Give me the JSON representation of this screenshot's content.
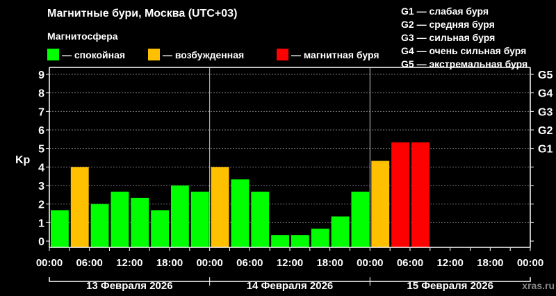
{
  "title": "Магнитные бури, Москва (UTC+03)",
  "subtitle": "Магнитосфера",
  "legend": [
    {
      "label": "— спокойная",
      "color": "#00ff00"
    },
    {
      "label": "— возбужденная",
      "color": "#ffc000"
    },
    {
      "label": "— магнитная буря",
      "color": "#ff0000"
    }
  ],
  "g_scale": [
    "G1 — слабая буря",
    "G2 — средняя буря",
    "G3 — сильная буря",
    "G4 — очень сильная буря",
    "G5 — экстремальная буря"
  ],
  "watermark": "xras.ru",
  "chart_data": {
    "type": "bar",
    "ylabel": "Kp",
    "ylim": [
      0,
      9
    ],
    "yticks": [
      0,
      1,
      2,
      3,
      4,
      5,
      6,
      7,
      8,
      9
    ],
    "right_ticks": [
      {
        "value": 5,
        "label": "G1"
      },
      {
        "value": 6,
        "label": "G2"
      },
      {
        "value": 7,
        "label": "G3"
      },
      {
        "value": 8,
        "label": "G4"
      },
      {
        "value": 9,
        "label": "G5"
      }
    ],
    "xtick_labels": [
      "00:00",
      "06:00",
      "12:00",
      "18:00",
      "00:00",
      "06:00",
      "12:00",
      "18:00",
      "00:00",
      "06:00",
      "12:00",
      "18:00",
      "00:00"
    ],
    "days": [
      "13 Февраля 2026",
      "14 Февраля 2026",
      "15 Февраля 2026"
    ],
    "slots_total": 24,
    "grid": "horizontal dashed",
    "values": [
      1.67,
      4.0,
      2.0,
      2.67,
      2.33,
      1.67,
      3.0,
      2.67,
      4.0,
      3.33,
      2.67,
      0.33,
      0.33,
      0.67,
      1.33,
      2.67,
      4.33,
      5.33,
      5.33
    ],
    "colors": [
      "#00ff00",
      "#ffc000",
      "#00ff00",
      "#00ff00",
      "#00ff00",
      "#00ff00",
      "#00ff00",
      "#00ff00",
      "#ffc000",
      "#00ff00",
      "#00ff00",
      "#00ff00",
      "#00ff00",
      "#00ff00",
      "#00ff00",
      "#00ff00",
      "#ffc000",
      "#ff0000",
      "#ff0000"
    ]
  }
}
